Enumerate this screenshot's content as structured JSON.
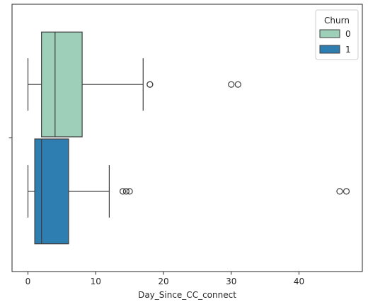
{
  "chart_data": {
    "type": "boxplot",
    "orientation": "horizontal",
    "title": "",
    "xlabel": "Day_Since_CC_connect",
    "ylabel": "",
    "xlim": [
      -2.35,
      49.35
    ],
    "xticks": [
      0,
      10,
      20,
      30,
      40
    ],
    "legend": {
      "title": "Churn",
      "placement": "top-right",
      "entries": [
        "0",
        "1"
      ]
    },
    "series": [
      {
        "name": "0",
        "color": "#9ecfb8",
        "whisker_low": 0,
        "q1": 2,
        "median": 4,
        "q3": 8,
        "whisker_high": 17,
        "outliers": [
          18,
          18,
          30,
          31
        ]
      },
      {
        "name": "1",
        "color": "#2e7eb1",
        "whisker_low": 0,
        "q1": 1,
        "median": 2,
        "q3": 6,
        "whisker_high": 12,
        "outliers": [
          14,
          14.5,
          15,
          46,
          47
        ]
      }
    ]
  }
}
